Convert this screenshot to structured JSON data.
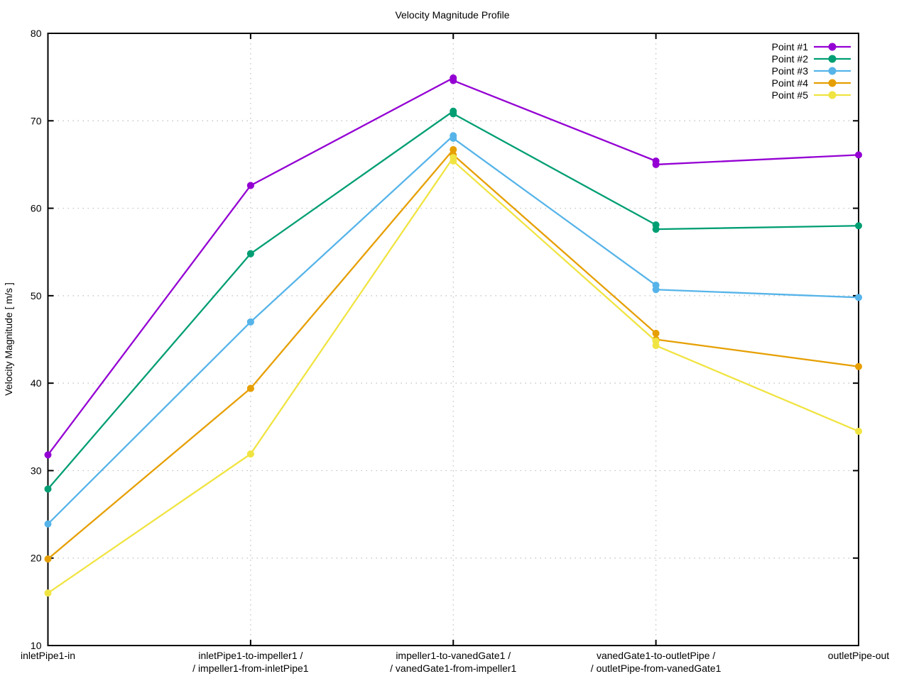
{
  "chart_data": {
    "type": "line",
    "title": "Velocity Magnitude Profile",
    "xlabel": "",
    "ylabel": "Velocity Magnitude [ m/s ]",
    "ylim": [
      10,
      80
    ],
    "yticks": [
      10,
      20,
      30,
      40,
      50,
      60,
      70,
      80
    ],
    "grid": true,
    "legend_position": "top-right-inside",
    "categories": [
      [
        "inletPipe1-in"
      ],
      [
        "inletPipe1-to-impeller1 /",
        "/ impeller1-from-inletPipe1"
      ],
      [
        "impeller1-to-vanedGate1 /",
        "/ vanedGate1-from-impeller1"
      ],
      [
        "vanedGate1-to-outletPipe /",
        "/ outletPipe-from-vanedGate1"
      ],
      [
        "outletPipe-out"
      ]
    ],
    "x_positions": [
      0,
      1,
      1,
      2,
      2,
      3,
      3,
      4
    ],
    "series": [
      {
        "name": "Point #1",
        "color": "#9400d3",
        "values": [
          31.8,
          62.6,
          62.6,
          74.9,
          74.6,
          65.4,
          65.0,
          66.1
        ]
      },
      {
        "name": "Point #2",
        "color": "#009e73",
        "values": [
          27.9,
          54.8,
          54.8,
          71.1,
          70.8,
          58.1,
          57.6,
          58.0
        ]
      },
      {
        "name": "Point #3",
        "color": "#56b4e9",
        "values": [
          23.9,
          47.0,
          47.0,
          68.3,
          68.0,
          51.2,
          50.7,
          49.8
        ]
      },
      {
        "name": "Point #4",
        "color": "#e69f00",
        "values": [
          19.9,
          39.4,
          39.4,
          66.7,
          66.1,
          45.7,
          45.0,
          41.9
        ]
      },
      {
        "name": "Point #5",
        "color": "#f0e442",
        "values": [
          16.0,
          31.9,
          31.9,
          65.8,
          65.4,
          44.8,
          44.3,
          34.5
        ]
      }
    ],
    "style": {
      "border_color": "#000000",
      "grid_color": "#bfbfbf",
      "background": "#ffffff"
    }
  }
}
